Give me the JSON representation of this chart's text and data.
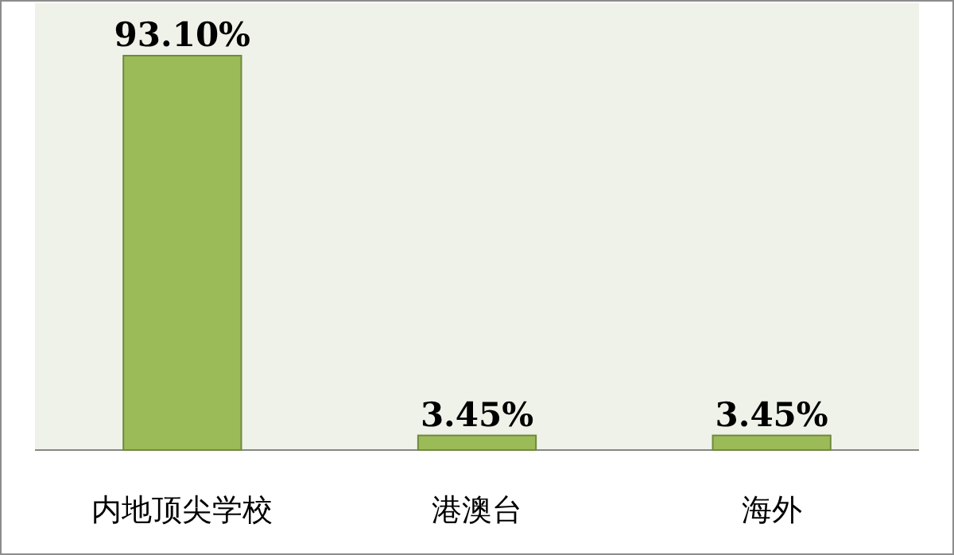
{
  "chart_data": {
    "type": "bar",
    "categories": [
      "内地顶尖学校",
      "港澳台",
      "海外"
    ],
    "series": [
      {
        "color": "#9bbb59",
        "values": [
          93.1,
          3.45,
          3.45
        ],
        "value_labels": [
          "93.10%",
          "3.45%",
          "3.45%"
        ]
      }
    ]
  }
}
